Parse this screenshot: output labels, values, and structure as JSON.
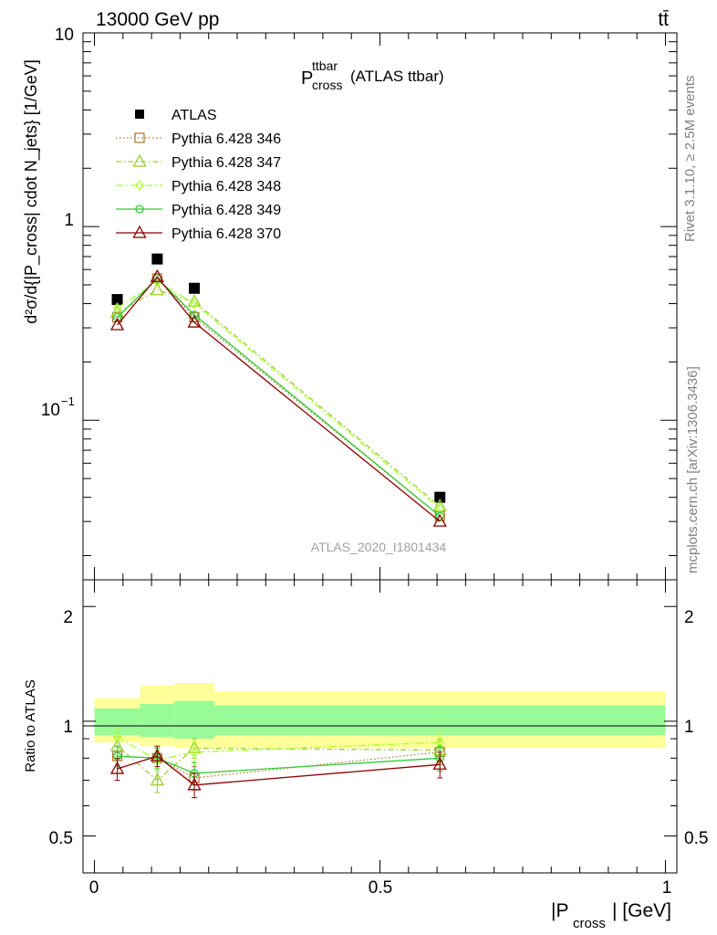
{
  "header": {
    "energy_label": "13000 GeV pp",
    "process_label": "tt̄",
    "side_label_top": "Rivet 3.1.10, ≥ 2.5M events",
    "side_label_bottom": "mcplots.cern.ch [arXiv:1306.3436]",
    "analysis_id": "ATLAS_2020_I1801434"
  },
  "main_panel": {
    "title_main": "P",
    "title_sub": "cross",
    "title_sup": "ttbar",
    "title_suffix": "(ATLAS ttbar)",
    "ylabel": "d²σ/d{|P_cross| cdot N_jets} [1/GeV]",
    "y_tick_labels": [
      "10",
      "1",
      "10"
    ],
    "y_tick_exp": "−1"
  },
  "ratio_panel": {
    "ylabel": "Ratio to ATLAS",
    "y_tick_labels": [
      "2",
      "1",
      "0.5"
    ]
  },
  "x_axis": {
    "label_main": "|P",
    "label_sub": "cross",
    "label_suffix": "| [GeV]",
    "tick_labels": [
      "0",
      "0.5",
      "1"
    ]
  },
  "legend": [
    {
      "label": "ATLAS"
    },
    {
      "label": "Pythia 6.428 346"
    },
    {
      "label": "Pythia 6.428 347"
    },
    {
      "label": "Pythia 6.428 348"
    },
    {
      "label": "Pythia 6.428 349"
    },
    {
      "label": "Pythia 6.428 370"
    }
  ],
  "chart_data": {
    "type": "line",
    "x": [
      0.04,
      0.11,
      0.175,
      0.605
    ],
    "bin_edges": [
      0.0,
      0.08,
      0.14,
      0.21,
      1.0
    ],
    "xlim": [
      -0.02,
      1.02
    ],
    "ylim": [
      0.015,
      10
    ],
    "yscale": "log",
    "ratio_ylim": [
      0.4,
      2.35
    ],
    "ratio_yscale": "log",
    "series": [
      {
        "name": "ATLAS",
        "color": "#000000",
        "marker": "square",
        "dash": "none",
        "values": [
          0.42,
          0.68,
          0.48,
          0.04
        ]
      },
      {
        "name": "Pythia 6.428 346",
        "color": "#b07b3a",
        "marker": "square-open",
        "dash": "1.5,2.5",
        "values": [
          0.34,
          0.54,
          0.34,
          0.032
        ],
        "ratio": [
          0.81,
          0.8,
          0.71,
          0.83
        ],
        "ratio_err": [
          0.05,
          0.05,
          0.05,
          0.06
        ]
      },
      {
        "name": "Pythia 6.428 347",
        "color": "#9acd32",
        "marker": "triangle-open",
        "dash": "6,3,1.5,3",
        "values": [
          0.36,
          0.47,
          0.41,
          0.036
        ],
        "ratio": [
          0.86,
          0.7,
          0.85,
          0.84
        ],
        "ratio_err": [
          0.05,
          0.05,
          0.05,
          0.06
        ]
      },
      {
        "name": "Pythia 6.428 348",
        "color": "#adff2f",
        "marker": "diamond-open",
        "dash": "8,3,2,3",
        "values": [
          0.38,
          0.52,
          0.4,
          0.035
        ],
        "ratio": [
          0.91,
          0.79,
          0.83,
          0.88
        ],
        "ratio_err": [
          0.05,
          0.05,
          0.05,
          0.06
        ]
      },
      {
        "name": "Pythia 6.428 349",
        "color": "#32cd32",
        "marker": "circle-open",
        "dash": "none",
        "values": [
          0.34,
          0.54,
          0.35,
          0.032
        ],
        "ratio": [
          0.81,
          0.8,
          0.73,
          0.8
        ],
        "ratio_err": [
          0.05,
          0.05,
          0.05,
          0.06
        ]
      },
      {
        "name": "Pythia 6.428 370",
        "color": "#8b0000",
        "marker": "triangle-open",
        "dash": "none",
        "values": [
          0.31,
          0.55,
          0.32,
          0.03
        ],
        "ratio": [
          0.75,
          0.81,
          0.68,
          0.77
        ],
        "ratio_err": [
          0.05,
          0.05,
          0.05,
          0.06
        ]
      }
    ],
    "uncertainty_bands": {
      "inner_color": "#98fb98",
      "outer_color": "#ffff99",
      "inner": [
        [
          0.92,
          1.08
        ],
        [
          0.91,
          1.11
        ],
        [
          0.9,
          1.13
        ],
        [
          0.92,
          1.1
        ]
      ],
      "outer": [
        [
          0.88,
          1.15
        ],
        [
          0.86,
          1.24
        ],
        [
          0.85,
          1.26
        ],
        [
          0.85,
          1.2
        ]
      ]
    }
  }
}
